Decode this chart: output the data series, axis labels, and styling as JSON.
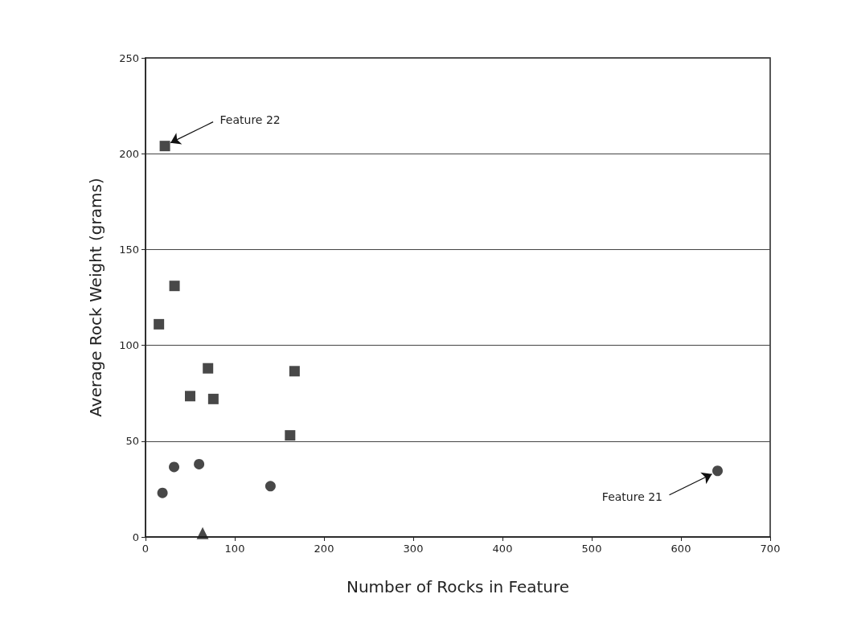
{
  "chart_data": {
    "type": "scatter",
    "xlabel": "Number of Rocks in Feature",
    "ylabel": "Average Rock Weight (grams)",
    "xlim": [
      0,
      700
    ],
    "xticks": [
      0,
      100,
      200,
      300,
      400,
      500,
      600,
      700
    ],
    "ylim": [
      0,
      250
    ],
    "yticks": [
      0,
      50,
      100,
      150,
      200,
      250
    ],
    "grid": "y",
    "series": [
      {
        "color": "#1a1a1a",
        "marker": "square",
        "x": [
          21.7,
          32.5,
          15,
          70,
          50,
          76,
          167,
          162
        ],
        "values": [
          204,
          131,
          111,
          88,
          73.5,
          72,
          86.5,
          53
        ]
      },
      {
        "color": "#1a1a1a",
        "marker": "circle",
        "x": [
          19,
          32,
          60,
          140,
          641
        ],
        "values": [
          23,
          36.5,
          38,
          26.5,
          34.5
        ]
      },
      {
        "color": "#1a1a1a",
        "marker": "triangle",
        "x": [
          64
        ],
        "values": [
          2
        ]
      }
    ],
    "annotations": [
      {
        "text": "Feature 22",
        "x": 21.7,
        "y": 204
      },
      {
        "text": "Feature 21",
        "x": 641,
        "y": 34.5
      }
    ]
  }
}
